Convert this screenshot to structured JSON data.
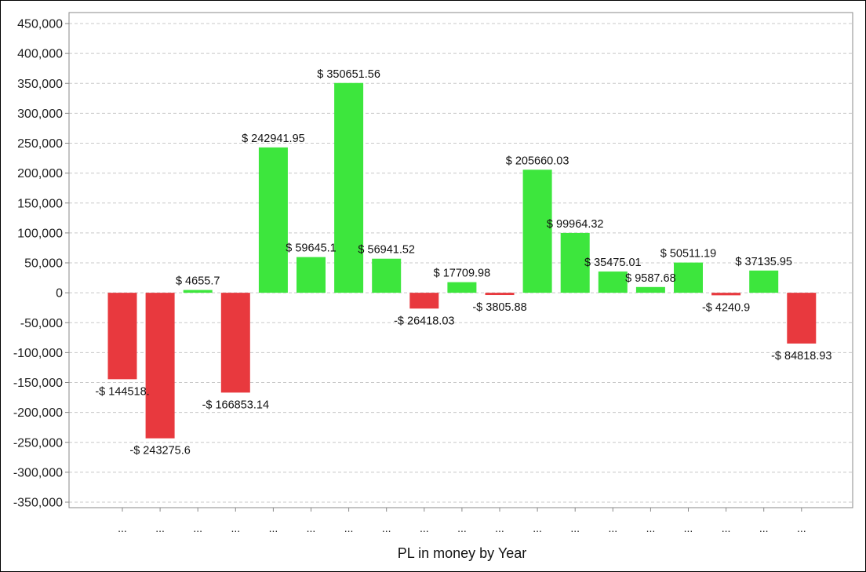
{
  "chart_data": {
    "type": "bar",
    "xlabel": "PL in money by Year",
    "ylabel": "",
    "ylim": [
      -350000,
      450000
    ],
    "yticks": [
      450000,
      400000,
      350000,
      300000,
      250000,
      200000,
      150000,
      100000,
      50000,
      0,
      -50000,
      -100000,
      -150000,
      -200000,
      -250000,
      -300000,
      -350000
    ],
    "ytick_labels": [
      "450,000",
      "400,000",
      "350,000",
      "300,000",
      "250,000",
      "200,000",
      "150,000",
      "100,000",
      "50,000",
      "0",
      "-50,000",
      "-100,000",
      "-150,000",
      "-200,000",
      "-250,000",
      "-300,000",
      "-350,000"
    ],
    "grid": true,
    "positive_color": "#3de63d",
    "negative_color": "#e8393e",
    "categories": [
      "...",
      "...",
      "...",
      "...",
      "...",
      "...",
      "...",
      "...",
      "...",
      "...",
      "...",
      "...",
      "...",
      "...",
      "...",
      "...",
      "...",
      "...",
      "..."
    ],
    "values": [
      -144518,
      -243275.6,
      4655.7,
      -166853.14,
      242941.95,
      59645.1,
      350651.56,
      56941.52,
      -26418.03,
      17709.98,
      -3805.88,
      205660.03,
      99964.32,
      35475.01,
      9587.68,
      50511.19,
      -4240.9,
      37135.95,
      -84818.93
    ],
    "data_labels": [
      "-$ 144518.",
      "-$ 243275.6",
      "$ 4655.7",
      "-$ 166853.14",
      "$ 242941.95",
      "$ 59645.1",
      "$ 350651.56",
      "$ 56941.52",
      "-$ 26418.03",
      "$ 17709.98",
      "-$ 3805.88",
      "$ 205660.03",
      "$ 99964.32",
      "$ 35475.01",
      "$ 9587.68",
      "$ 50511.19",
      "-$ 4240.9",
      "$ 37135.95",
      "-$ 84818.93"
    ]
  }
}
